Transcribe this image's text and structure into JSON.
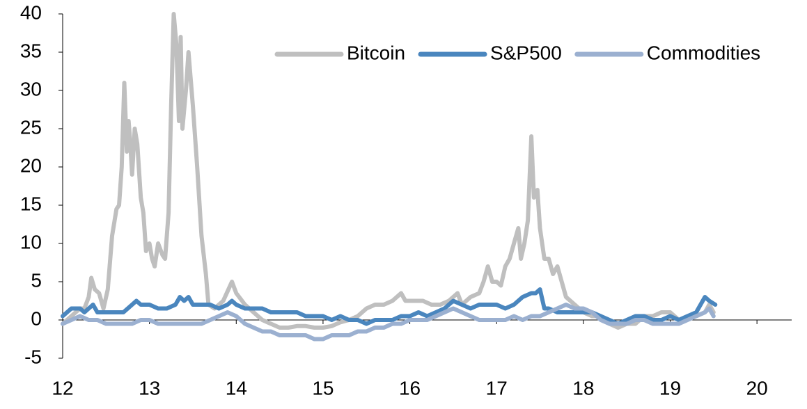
{
  "chart_data": {
    "type": "line",
    "xlim": [
      12,
      20.4
    ],
    "xticks": [
      12,
      13,
      14,
      15,
      16,
      17,
      18,
      19,
      20
    ],
    "ylim": [
      -5,
      40
    ],
    "yticks": [
      -5,
      0,
      5,
      10,
      15,
      20,
      25,
      30,
      35,
      40
    ],
    "series": [
      {
        "name": "Bitcoin",
        "color": "#bfbfbf",
        "x": [
          12.0,
          12.1,
          12.2,
          12.25,
          12.3,
          12.33,
          12.37,
          12.42,
          12.47,
          12.52,
          12.57,
          12.62,
          12.65,
          12.68,
          12.71,
          12.74,
          12.76,
          12.78,
          12.8,
          12.83,
          12.86,
          12.9,
          12.93,
          12.96,
          13.0,
          13.03,
          13.06,
          13.1,
          13.15,
          13.18,
          13.22,
          13.25,
          13.28,
          13.31,
          13.34,
          13.36,
          13.38,
          13.42,
          13.45,
          13.5,
          13.55,
          13.6,
          13.65,
          13.68,
          13.75,
          13.85,
          13.95,
          14.0,
          14.1,
          14.2,
          14.3,
          14.4,
          14.5,
          14.6,
          14.7,
          14.8,
          14.9,
          15.0,
          15.1,
          15.2,
          15.3,
          15.4,
          15.5,
          15.6,
          15.7,
          15.8,
          15.9,
          15.95,
          16.05,
          16.15,
          16.25,
          16.35,
          16.45,
          16.55,
          16.6,
          16.7,
          16.8,
          16.85,
          16.9,
          16.95,
          17.0,
          17.05,
          17.1,
          17.15,
          17.2,
          17.25,
          17.28,
          17.32,
          17.36,
          17.4,
          17.43,
          17.47,
          17.5,
          17.55,
          17.6,
          17.65,
          17.7,
          17.75,
          17.8,
          17.9,
          18.0,
          18.1,
          18.2,
          18.3,
          18.4,
          18.5,
          18.6,
          18.7,
          18.8,
          18.9,
          19.0,
          19.1,
          19.2,
          19.3,
          19.4,
          19.45,
          19.5
        ],
        "values": [
          -0.5,
          0.5,
          1.5,
          1.5,
          3,
          5.5,
          4,
          3.5,
          1.5,
          4,
          11,
          14.5,
          15,
          20,
          31,
          22,
          26,
          23,
          19,
          25,
          23,
          16,
          14,
          9,
          10,
          8,
          7,
          10,
          8.5,
          8,
          14,
          28,
          40,
          36,
          26,
          37,
          25,
          30,
          35,
          28,
          20,
          11,
          6,
          2,
          1.5,
          2.5,
          5,
          3.5,
          2,
          1,
          0,
          -0.5,
          -1,
          -1,
          -0.8,
          -0.8,
          -1,
          -1,
          -0.8,
          -0.3,
          0,
          0.5,
          1.5,
          2,
          2,
          2.5,
          3.5,
          2.5,
          2.5,
          2.5,
          2,
          2,
          2.5,
          3.5,
          2,
          3,
          3.5,
          5,
          7,
          5,
          5,
          4.5,
          7,
          8,
          10,
          12,
          8,
          10,
          13,
          24,
          16,
          17,
          12,
          8,
          8,
          6,
          7,
          5,
          3,
          2,
          1,
          0.5,
          0.5,
          -0.5,
          -1,
          -0.5,
          -0.5,
          0.5,
          0.5,
          1,
          1,
          0,
          0.5,
          0.5,
          1,
          2,
          1
        ]
      },
      {
        "name": "S&P500",
        "color": "#4a86be",
        "x": [
          12.0,
          12.1,
          12.2,
          12.25,
          12.3,
          12.35,
          12.4,
          12.5,
          12.6,
          12.7,
          12.8,
          12.85,
          12.9,
          13.0,
          13.1,
          13.2,
          13.3,
          13.35,
          13.4,
          13.45,
          13.5,
          13.6,
          13.7,
          13.8,
          13.9,
          13.95,
          14.0,
          14.1,
          14.2,
          14.3,
          14.4,
          14.5,
          14.6,
          14.7,
          14.8,
          14.9,
          15.0,
          15.1,
          15.2,
          15.3,
          15.4,
          15.5,
          15.6,
          15.7,
          15.8,
          15.9,
          16.0,
          16.1,
          16.2,
          16.3,
          16.4,
          16.5,
          16.6,
          16.7,
          16.8,
          16.9,
          17.0,
          17.1,
          17.2,
          17.3,
          17.4,
          17.45,
          17.5,
          17.55,
          17.6,
          17.7,
          17.8,
          17.9,
          18.0,
          18.1,
          18.2,
          18.3,
          18.4,
          18.5,
          18.6,
          18.7,
          18.8,
          18.9,
          19.0,
          19.1,
          19.2,
          19.3,
          19.4,
          19.45,
          19.52
        ],
        "values": [
          0.5,
          1.5,
          1.5,
          1,
          1.5,
          2,
          1,
          1,
          1,
          1,
          2,
          2.5,
          2,
          2,
          1.5,
          1.5,
          2,
          3,
          2.5,
          3,
          2,
          2,
          2,
          1.5,
          2,
          2.5,
          2,
          1.5,
          1.5,
          1.5,
          1,
          1,
          1,
          1,
          0.5,
          0.5,
          0.5,
          0,
          0.5,
          0,
          0,
          -0.5,
          0,
          0,
          0,
          0.5,
          0.5,
          1,
          0.5,
          1,
          1.5,
          2.5,
          2,
          1.5,
          2,
          2,
          2,
          1.5,
          2,
          3,
          3.5,
          3.5,
          4,
          1.5,
          1.5,
          1,
          1,
          1,
          1,
          1,
          0.5,
          0,
          -0.5,
          0,
          0.5,
          0.5,
          0,
          0,
          0.5,
          0,
          0.5,
          1,
          3,
          2.5,
          2
        ]
      },
      {
        "name": "Commodities",
        "color": "#9bb0d0",
        "x": [
          12.0,
          12.1,
          12.2,
          12.3,
          12.4,
          12.5,
          12.6,
          12.7,
          12.8,
          12.9,
          13.0,
          13.1,
          13.2,
          13.3,
          13.4,
          13.5,
          13.6,
          13.7,
          13.8,
          13.9,
          14.0,
          14.1,
          14.2,
          14.3,
          14.4,
          14.5,
          14.6,
          14.7,
          14.8,
          14.9,
          15.0,
          15.1,
          15.2,
          15.3,
          15.4,
          15.5,
          15.6,
          15.7,
          15.8,
          15.9,
          16.0,
          16.1,
          16.2,
          16.3,
          16.4,
          16.5,
          16.6,
          16.7,
          16.8,
          16.9,
          17.0,
          17.1,
          17.2,
          17.3,
          17.4,
          17.5,
          17.6,
          17.7,
          17.8,
          17.9,
          18.0,
          18.1,
          18.2,
          18.3,
          18.4,
          18.5,
          18.6,
          18.7,
          18.8,
          18.9,
          19.0,
          19.1,
          19.2,
          19.3,
          19.4,
          19.45,
          19.5
        ],
        "values": [
          -0.5,
          0,
          0.5,
          0,
          0,
          -0.5,
          -0.5,
          -0.5,
          -0.5,
          0,
          0,
          -0.5,
          -0.5,
          -0.5,
          -0.5,
          -0.5,
          -0.5,
          0,
          0.5,
          1,
          0.5,
          -0.5,
          -1,
          -1.5,
          -1.5,
          -2,
          -2,
          -2,
          -2,
          -2.5,
          -2.5,
          -2,
          -2,
          -2,
          -1.5,
          -1.5,
          -1,
          -1,
          -0.5,
          -0.5,
          0,
          0,
          0,
          0.5,
          1,
          1.5,
          1,
          0.5,
          0,
          0,
          0,
          0,
          0.5,
          0,
          0.5,
          0.5,
          1,
          1.5,
          2,
          1.5,
          1.5,
          1,
          0,
          -0.5,
          -0.5,
          -0.5,
          0,
          0,
          -0.5,
          -0.5,
          -0.5,
          -0.5,
          0,
          0.5,
          1,
          1.5,
          0.5
        ]
      }
    ]
  }
}
